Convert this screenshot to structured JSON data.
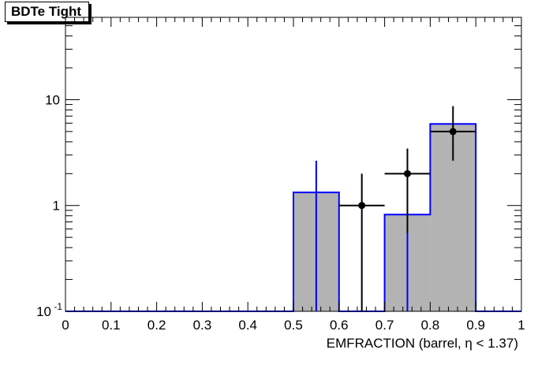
{
  "chart_data": {
    "type": "histogram",
    "title": "BDTe Tight",
    "xlabel": "EMFRACTION (barrel,  η < 1.37)",
    "ylabel": "",
    "xlim": [
      0,
      1
    ],
    "ylim": [
      0.1,
      60
    ],
    "yscale": "log",
    "grid": false,
    "x_ticks": [
      {
        "value": 0,
        "label": "0"
      },
      {
        "value": 0.1,
        "label": "0.1"
      },
      {
        "value": 0.2,
        "label": "0.2"
      },
      {
        "value": 0.3,
        "label": "0.3"
      },
      {
        "value": 0.4,
        "label": "0.4"
      },
      {
        "value": 0.5,
        "label": "0.5"
      },
      {
        "value": 0.6,
        "label": "0.6"
      },
      {
        "value": 0.7,
        "label": "0.7"
      },
      {
        "value": 0.8,
        "label": "0.8"
      },
      {
        "value": 0.9,
        "label": "0.9"
      },
      {
        "value": 1,
        "label": "1"
      }
    ],
    "y_ticks": [
      {
        "value": 0.1,
        "label": "10",
        "exponent": "-1"
      },
      {
        "value": 1,
        "label": "1",
        "exponent": ""
      },
      {
        "value": 10,
        "label": "10",
        "exponent": ""
      }
    ],
    "bin_edges": [
      0,
      0.1,
      0.2,
      0.3,
      0.4,
      0.5,
      0.6,
      0.7,
      0.8,
      0.9,
      1.0
    ],
    "series": [
      {
        "kind": "filled-histogram",
        "fill": "#b3b3b3",
        "line": "#0000ff",
        "values": [
          0,
          0,
          0,
          0,
          0,
          1.33,
          0,
          0.82,
          5.9,
          0
        ],
        "errors": [
          {
            "x": 0.55,
            "low": 0.1,
            "high": 2.65
          },
          {
            "x": 0.75,
            "low": 0.1,
            "high": 0.82
          }
        ]
      },
      {
        "kind": "data-points",
        "color": "#000000",
        "points": [
          {
            "x": 0.65,
            "y": 1.0,
            "xerr": 0.05,
            "low": 0.1,
            "high": 2.0
          },
          {
            "x": 0.75,
            "y": 2.0,
            "xerr": 0.05,
            "low": 0.55,
            "high": 3.45
          },
          {
            "x": 0.85,
            "y": 5.0,
            "xerr": 0.05,
            "low": 2.65,
            "high": 8.7
          }
        ]
      }
    ]
  }
}
